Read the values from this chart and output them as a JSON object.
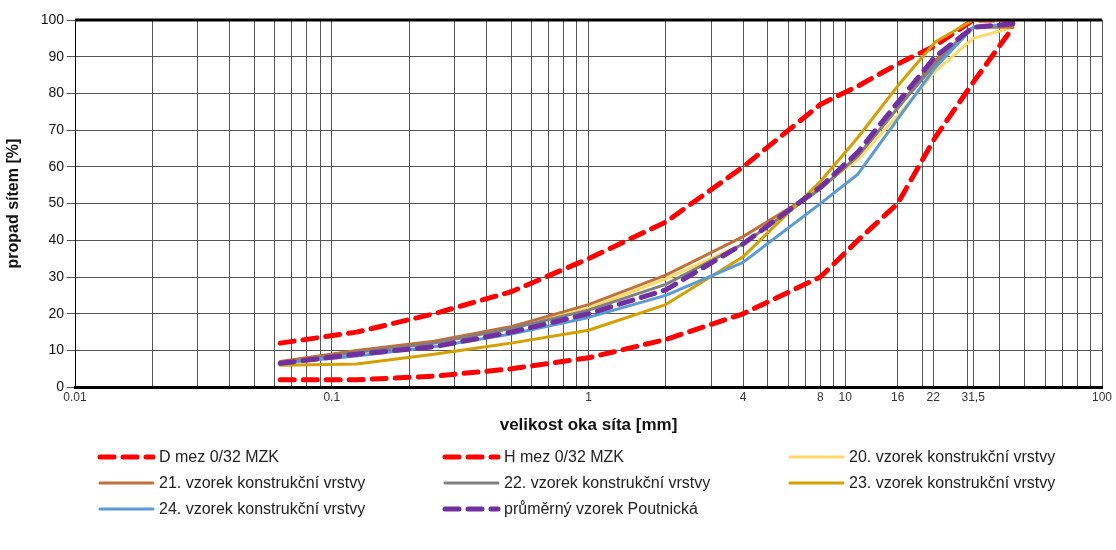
{
  "chart_data": {
    "type": "line",
    "xlabel": "velikost oka síta [mm]",
    "ylabel": "propad sítem [%]",
    "log": "x",
    "grid": true,
    "legend": "bottom",
    "marker": "none",
    "x": [
      0.063,
      0.125,
      0.25,
      0.5,
      1,
      2,
      4,
      8,
      11.2,
      16,
      22.4,
      31.5,
      45
    ],
    "xlim": [
      0.01,
      100
    ],
    "xticks": [
      0.01,
      {
        "value": 0.02,
        "label": null
      },
      {
        "value": 0.03,
        "label": null
      },
      {
        "value": 0.04,
        "label": null
      },
      {
        "value": 0.05,
        "label": null
      },
      {
        "value": 0.06,
        "label": null
      },
      {
        "value": 0.07,
        "label": null
      },
      {
        "value": 0.08,
        "label": null
      },
      {
        "value": 0.09,
        "label": null
      },
      0.1,
      {
        "value": 0.2,
        "label": null
      },
      {
        "value": 0.3,
        "label": null
      },
      {
        "value": 0.4,
        "label": null
      },
      {
        "value": 0.5,
        "label": null
      },
      {
        "value": 0.6,
        "label": null
      },
      {
        "value": 0.7,
        "label": null
      },
      {
        "value": 0.8,
        "label": null
      },
      {
        "value": 0.9,
        "label": null
      },
      1,
      {
        "value": 2,
        "label": null
      },
      {
        "value": 3,
        "label": null
      },
      4,
      {
        "value": 5,
        "label": null
      },
      {
        "value": 6,
        "label": null
      },
      {
        "value": 7,
        "label": null
      },
      8,
      {
        "value": 9,
        "label": null
      },
      10,
      16,
      {
        "value": 20,
        "label": null
      },
      22,
      {
        "value": 30,
        "label": null
      },
      {
        "value": 31.5,
        "label": "31,5"
      },
      {
        "value": 40,
        "label": null
      },
      {
        "value": 50,
        "label": null
      },
      {
        "value": 60,
        "label": null
      },
      {
        "value": 70,
        "label": null
      },
      {
        "value": 80,
        "label": null
      },
      {
        "value": 90,
        "label": null
      },
      100
    ],
    "ylim": [
      0,
      100
    ],
    "yticks": [
      0,
      10,
      20,
      30,
      40,
      50,
      60,
      70,
      80,
      90,
      100
    ],
    "series": [
      {
        "name": "D mez 0/32 MZK",
        "color": "#ff0000",
        "line_style": "dashed",
        "values": [
          12,
          15,
          20,
          26,
          35,
          45,
          60,
          77,
          82,
          88,
          93,
          100,
          100
        ]
      },
      {
        "name": "H mez 0/32 MZK",
        "color": "#ff0000",
        "line_style": "dashed",
        "values": [
          2,
          2,
          3,
          5,
          8,
          13,
          20,
          30,
          40,
          50,
          68,
          83,
          98
        ]
      },
      {
        "name": "20. vzorek konstrukční vrstvy",
        "color": "#ffd966",
        "line_style": "solid",
        "values": [
          6.5,
          9.5,
          12,
          16,
          21.5,
          29.5,
          39,
          54.5,
          62,
          74,
          86,
          95,
          98
        ]
      },
      {
        "name": "21. vzorek konstrukční vrstvy",
        "color": "#c0703a",
        "line_style": "solid",
        "values": [
          7,
          10,
          12.5,
          16.5,
          22.5,
          30.5,
          41,
          54,
          63,
          76,
          89,
          98,
          98
        ]
      },
      {
        "name": "22. vzorek konstrukční vrstvy",
        "color": "#808080",
        "line_style": "solid",
        "values": [
          6.5,
          9.5,
          12,
          16,
          21,
          28,
          39,
          54,
          63,
          76,
          88,
          98,
          99
        ]
      },
      {
        "name": "23. vzorek konstrukční vrstvy",
        "color": "#d4a000",
        "line_style": "solid",
        "values": [
          6,
          6.3,
          9,
          12,
          15.5,
          22.5,
          35.5,
          56,
          68,
          82,
          94,
          100,
          100
        ]
      },
      {
        "name": "24. vzorek konstrukční vrstvy",
        "color": "#5b9bd5",
        "line_style": "solid",
        "values": [
          6.5,
          8.5,
          11,
          14.5,
          19,
          25,
          34,
          50,
          58,
          73,
          87,
          98,
          99
        ]
      },
      {
        "name": "průměrný vzorek Poutnická",
        "color": "#7030a0",
        "line_style": "dashed",
        "values": [
          6.5,
          9,
          11,
          15,
          20,
          26.5,
          39,
          54.5,
          64,
          77.5,
          90,
          98,
          99
        ]
      }
    ]
  }
}
